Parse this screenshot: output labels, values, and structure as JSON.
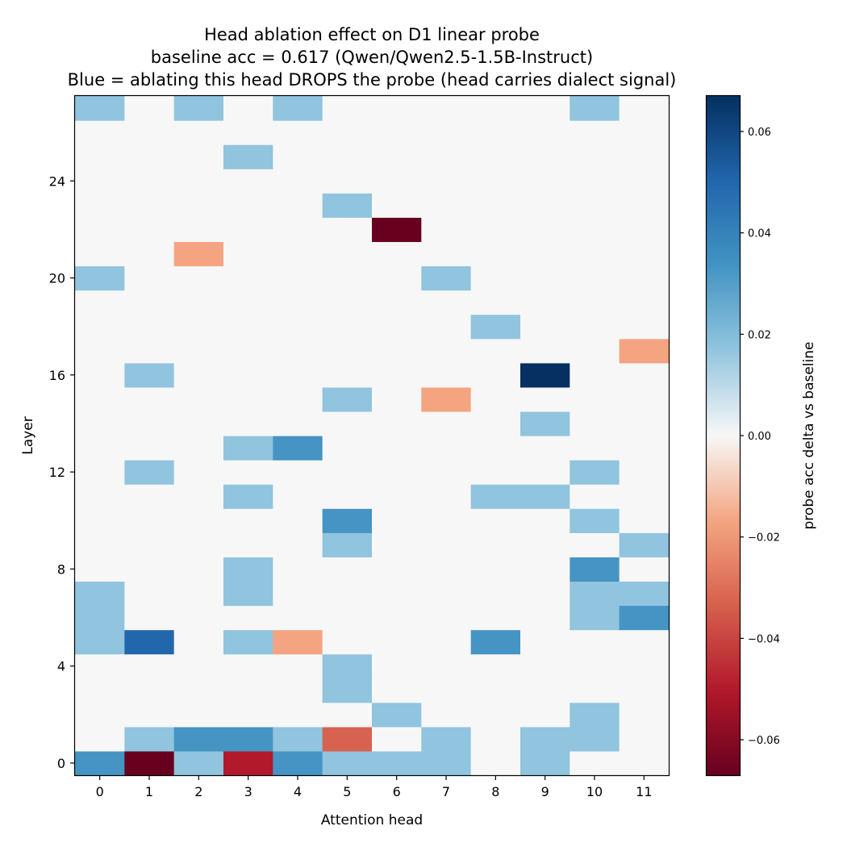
{
  "chart_data": {
    "type": "heatmap",
    "title_lines": [
      "Head ablation effect on D1 linear probe",
      "baseline acc = 0.617  (Qwen/Qwen2.5-1.5B-Instruct)",
      "Blue = ablating this head DROPS the probe (head carries dialect signal)"
    ],
    "xlabel": "Attention head",
    "ylabel": "Layer",
    "colorbar_label": "probe acc delta vs baseline",
    "colormap": "RdBu",
    "vmin": -0.067,
    "vmax": 0.067,
    "x_categories": [
      0,
      1,
      2,
      3,
      4,
      5,
      6,
      7,
      8,
      9,
      10,
      11
    ],
    "x_tick_labels": [
      "0",
      "1",
      "2",
      "3",
      "4",
      "5",
      "6",
      "7",
      "8",
      "9",
      "10",
      "11"
    ],
    "y_range": [
      0,
      27
    ],
    "y_tick_values": [
      0,
      4,
      8,
      12,
      16,
      20,
      24
    ],
    "y_tick_labels": [
      "0",
      "4",
      "8",
      "12",
      "16",
      "20",
      "24"
    ],
    "colorbar_tick_values": [
      0.06,
      0.04,
      0.02,
      0.0,
      -0.02,
      -0.04,
      -0.06
    ],
    "colorbar_tick_labels": [
      "0.06",
      "0.04",
      "0.02",
      "0.00",
      "−0.02",
      "−0.04",
      "−0.06"
    ],
    "layers": [
      {
        "layer": 0,
        "values": [
          0.033,
          -0.067,
          0.017,
          -0.05,
          0.033,
          0.017,
          0.017,
          0.017,
          0,
          0.017,
          0,
          0
        ]
      },
      {
        "layer": 1,
        "values": [
          0,
          0.017,
          0.033,
          0.033,
          0.017,
          -0.033,
          0,
          0.017,
          0,
          0.017,
          0.017,
          0
        ]
      },
      {
        "layer": 2,
        "values": [
          0,
          0,
          0,
          0,
          0,
          0,
          0.017,
          0,
          0,
          0,
          0.017,
          0
        ]
      },
      {
        "layer": 3,
        "values": [
          0,
          0,
          0,
          0,
          0,
          0.017,
          0,
          0,
          0,
          0,
          0,
          0
        ]
      },
      {
        "layer": 4,
        "values": [
          0,
          0,
          0,
          0,
          0,
          0.017,
          0,
          0,
          0,
          0,
          0,
          0
        ]
      },
      {
        "layer": 5,
        "values": [
          0.017,
          0.05,
          0,
          0.017,
          -0.017,
          0,
          0,
          0,
          0.033,
          0,
          0,
          0
        ]
      },
      {
        "layer": 6,
        "values": [
          0.017,
          0,
          0,
          0,
          0,
          0,
          0,
          0,
          0,
          0,
          0.017,
          0.033
        ]
      },
      {
        "layer": 7,
        "values": [
          0.017,
          0,
          0,
          0.017,
          0,
          0,
          0,
          0,
          0,
          0,
          0.017,
          0.017
        ]
      },
      {
        "layer": 8,
        "values": [
          0,
          0,
          0,
          0.017,
          0,
          0,
          0,
          0,
          0,
          0,
          0.033,
          0
        ]
      },
      {
        "layer": 9,
        "values": [
          0,
          0,
          0,
          0,
          0,
          0.017,
          0,
          0,
          0,
          0,
          0,
          0.017
        ]
      },
      {
        "layer": 10,
        "values": [
          0,
          0,
          0,
          0,
          0,
          0.033,
          0,
          0,
          0,
          0,
          0.017,
          0
        ]
      },
      {
        "layer": 11,
        "values": [
          0,
          0,
          0,
          0.017,
          0,
          0,
          0,
          0,
          0.017,
          0.017,
          0,
          0
        ]
      },
      {
        "layer": 12,
        "values": [
          0,
          0.017,
          0,
          0,
          0,
          0,
          0,
          0,
          0,
          0,
          0.017,
          0
        ]
      },
      {
        "layer": 13,
        "values": [
          0,
          0,
          0,
          0.017,
          0.033,
          0,
          0,
          0,
          0,
          0,
          0,
          0
        ]
      },
      {
        "layer": 14,
        "values": [
          0,
          0,
          0,
          0,
          0,
          0,
          0,
          0,
          0,
          0.017,
          0,
          0
        ]
      },
      {
        "layer": 15,
        "values": [
          0,
          0,
          0,
          0,
          0,
          0.017,
          0,
          -0.017,
          0,
          0,
          0,
          0
        ]
      },
      {
        "layer": 16,
        "values": [
          0,
          0.017,
          0,
          0,
          0,
          0,
          0,
          0,
          0,
          0.067,
          0,
          0
        ]
      },
      {
        "layer": 17,
        "values": [
          0,
          0,
          0,
          0,
          0,
          0,
          0,
          0,
          0,
          0,
          0,
          -0.017
        ]
      },
      {
        "layer": 18,
        "values": [
          0,
          0,
          0,
          0,
          0,
          0,
          0,
          0,
          0.017,
          0,
          0,
          0
        ]
      },
      {
        "layer": 19,
        "values": [
          0,
          0,
          0,
          0,
          0,
          0,
          0,
          0,
          0,
          0,
          0,
          0
        ]
      },
      {
        "layer": 20,
        "values": [
          0.017,
          0,
          0,
          0,
          0,
          0,
          0,
          0.017,
          0,
          0,
          0,
          0
        ]
      },
      {
        "layer": 21,
        "values": [
          0,
          0,
          -0.017,
          0,
          0,
          0,
          0,
          0,
          0,
          0,
          0,
          0
        ]
      },
      {
        "layer": 22,
        "values": [
          0,
          0,
          0,
          0,
          0,
          0,
          -0.067,
          0,
          0,
          0,
          0,
          0
        ]
      },
      {
        "layer": 23,
        "values": [
          0,
          0,
          0,
          0,
          0,
          0.017,
          0,
          0,
          0,
          0,
          0,
          0
        ]
      },
      {
        "layer": 24,
        "values": [
          0,
          0,
          0,
          0,
          0,
          0,
          0,
          0,
          0,
          0,
          0,
          0
        ]
      },
      {
        "layer": 25,
        "values": [
          0,
          0,
          0,
          0.017,
          0,
          0,
          0,
          0,
          0,
          0,
          0,
          0
        ]
      },
      {
        "layer": 26,
        "values": [
          0,
          0,
          0,
          0,
          0,
          0,
          0,
          0,
          0,
          0,
          0,
          0
        ]
      },
      {
        "layer": 27,
        "values": [
          0.017,
          0,
          0.017,
          0,
          0.017,
          0,
          0,
          0,
          0,
          0,
          0.017,
          0
        ]
      }
    ]
  }
}
